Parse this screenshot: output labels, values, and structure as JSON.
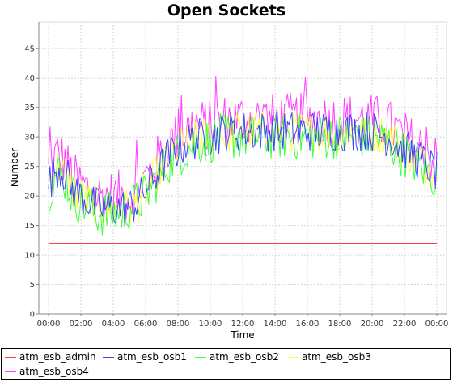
{
  "chart_data": {
    "type": "line",
    "title": "Open Sockets",
    "xlabel": "Time",
    "ylabel": "Number",
    "x_ticks": [
      "00:00",
      "02:00",
      "04:00",
      "06:00",
      "08:00",
      "10:00",
      "12:00",
      "14:00",
      "16:00",
      "18:00",
      "20:00",
      "22:00",
      "00:00"
    ],
    "y_ticks": [
      0,
      5,
      10,
      15,
      20,
      25,
      30,
      35,
      40,
      45
    ],
    "ylim": [
      0,
      49.5
    ],
    "xlim_hours": [
      -0.6,
      24.6
    ],
    "grid": true,
    "legend_position": "bottom",
    "series": [
      {
        "name": "atm_esb_admin",
        "color": "#ff4040",
        "x_hours": [
          0,
          24
        ],
        "values": [
          12,
          12
        ]
      },
      {
        "name": "atm_esb_osb1",
        "color": "#4040ff",
        "x_hours": [
          0,
          0.5,
          1,
          1.5,
          2,
          2.5,
          3,
          3.5,
          4,
          4.5,
          5,
          5.5,
          6,
          6.5,
          7,
          7.5,
          8,
          8.5,
          9,
          9.5,
          10,
          10.5,
          11,
          11.5,
          12,
          12.5,
          13,
          13.5,
          14,
          14.5,
          15,
          15.5,
          16,
          16.5,
          17,
          17.5,
          18,
          18.5,
          19,
          19.5,
          20,
          20.5,
          21,
          21.5,
          22,
          22.5,
          23,
          23.5,
          24
        ],
        "values": [
          22,
          25,
          24,
          21,
          20,
          19,
          18,
          18,
          18,
          18,
          18,
          19,
          21,
          23,
          25,
          27,
          28,
          29,
          29.5,
          30,
          30,
          30.5,
          31,
          31,
          31,
          31,
          31,
          31,
          31,
          31,
          31,
          31,
          31,
          31,
          31,
          31,
          31,
          31,
          31,
          31,
          31,
          30.5,
          30,
          29,
          28,
          27,
          26,
          25,
          24
        ]
      },
      {
        "name": "atm_esb_osb2",
        "color": "#40ff40",
        "x_hours": [
          0,
          0.5,
          1,
          1.5,
          2,
          2.5,
          3,
          3.5,
          4,
          4.5,
          5,
          5.5,
          6,
          6.5,
          7,
          7.5,
          8,
          8.5,
          9,
          9.5,
          10,
          10.5,
          11,
          11.5,
          12,
          12.5,
          13,
          13.5,
          14,
          14.5,
          15,
          15.5,
          16,
          16.5,
          17,
          17.5,
          18,
          18.5,
          19,
          19.5,
          20,
          20.5,
          21,
          21.5,
          22,
          22.5,
          23,
          23.5,
          24
        ],
        "values": [
          21,
          24,
          23,
          20,
          19,
          18,
          17,
          17,
          17,
          17,
          18,
          19,
          20,
          22,
          24,
          26,
          27,
          28,
          29,
          29,
          29.5,
          30,
          30,
          30,
          30,
          30,
          30,
          30,
          30,
          30,
          30,
          30,
          30,
          30,
          30,
          30,
          30,
          30,
          30,
          30,
          30,
          29.5,
          29,
          28,
          27,
          26,
          25,
          24,
          23
        ]
      },
      {
        "name": "atm_esb_osb3",
        "color": "#ffff40",
        "x_hours": [
          0,
          0.5,
          1,
          1.5,
          2,
          2.5,
          3,
          3.5,
          4,
          4.5,
          5,
          5.5,
          6,
          6.5,
          7,
          7.5,
          8,
          8.5,
          9,
          9.5,
          10,
          10.5,
          11,
          11.5,
          12,
          12.5,
          13,
          13.5,
          14,
          14.5,
          15,
          15.5,
          16,
          16.5,
          17,
          17.5,
          18,
          18.5,
          19,
          19.5,
          20,
          20.5,
          21,
          21.5,
          22,
          22.5,
          23,
          23.5,
          24
        ],
        "values": [
          22,
          25,
          24,
          21,
          20,
          19,
          18,
          18,
          18,
          18,
          18,
          19,
          21,
          23,
          25,
          27,
          28,
          29,
          29.5,
          30,
          30,
          30.5,
          30.5,
          31,
          31,
          31,
          31,
          31,
          31,
          31,
          31,
          31,
          31,
          31,
          31,
          31,
          31,
          31,
          31,
          31,
          31,
          30.5,
          30,
          29,
          28,
          27,
          26,
          25,
          24
        ]
      },
      {
        "name": "atm_esb_osb4",
        "color": "#ff40ff",
        "x_hours": [
          0,
          0.5,
          1,
          1.5,
          2,
          2.5,
          3,
          3.5,
          4,
          4.5,
          5,
          5.5,
          6,
          6.5,
          7,
          7.5,
          8,
          8.5,
          9,
          9.5,
          10,
          10.5,
          11,
          11.5,
          12,
          12.5,
          13,
          13.5,
          14,
          14.5,
          15,
          15.5,
          16,
          16.5,
          17,
          17.5,
          18,
          18.5,
          19,
          19.5,
          20,
          20.5,
          21,
          21.5,
          22,
          22.5,
          23,
          23.5,
          24
        ],
        "values": [
          24,
          27,
          26,
          23,
          22,
          21,
          20,
          20,
          20,
          20,
          20,
          21,
          23,
          25,
          27,
          29,
          30,
          31,
          32,
          32,
          32,
          32.5,
          33,
          33,
          33,
          33,
          33,
          33,
          33,
          33,
          33,
          33,
          33,
          33,
          33,
          33,
          33,
          33,
          33,
          33,
          33,
          32.5,
          32,
          31,
          30,
          29,
          28,
          27,
          26
        ]
      }
    ]
  }
}
